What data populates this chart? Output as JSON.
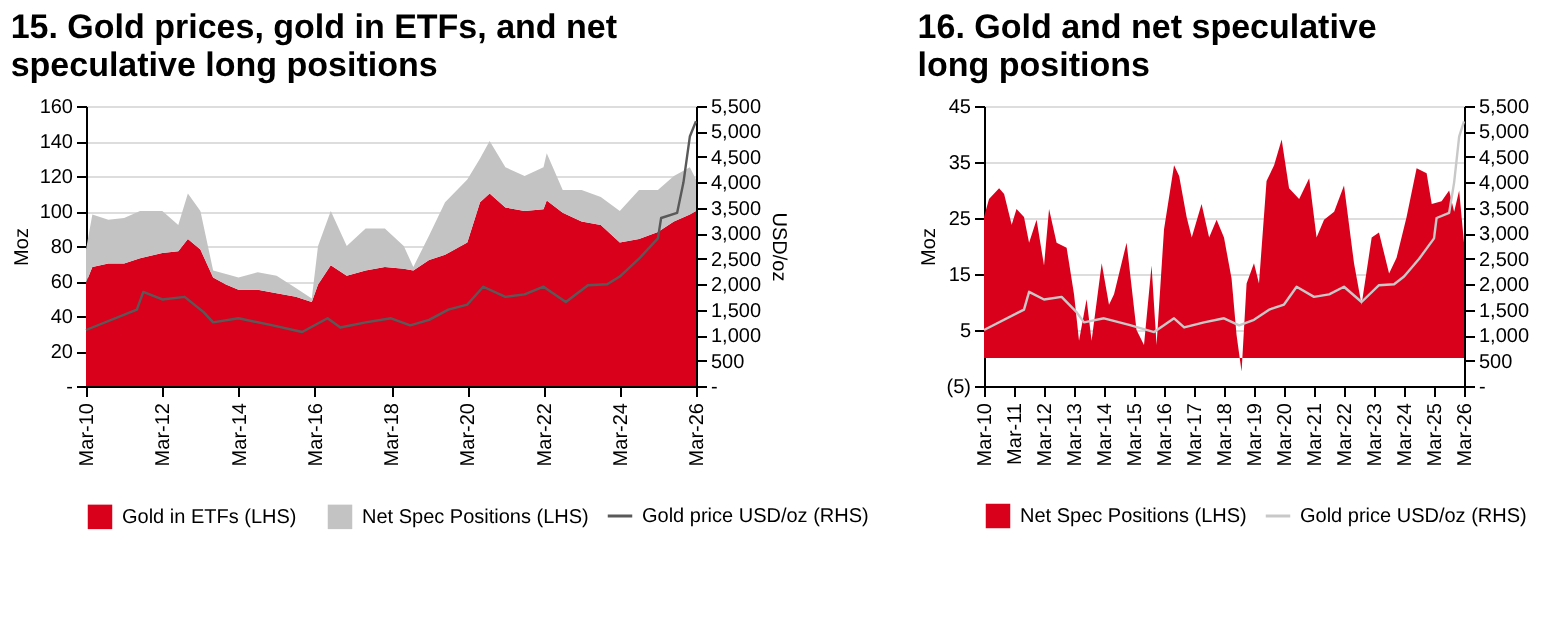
{
  "chart_data": [
    {
      "type": "area",
      "title": "15. Gold prices, gold in ETFs, and net speculative long positions",
      "ylabel": "Moz",
      "y2label": "USD/oz",
      "stacked": true,
      "legend": "bottom",
      "grid": "y",
      "x": [
        "2010-03",
        "2010-05",
        "2010-10",
        "2011-03",
        "2011-08",
        "2012-03",
        "2012-08",
        "2012-11",
        "2013-03",
        "2013-07",
        "2013-11",
        "2014-03",
        "2014-09",
        "2015-03",
        "2015-09",
        "2016-02",
        "2016-04",
        "2016-08",
        "2017-01",
        "2017-07",
        "2018-01",
        "2018-07",
        "2018-10",
        "2019-03",
        "2019-08",
        "2020-03",
        "2020-07",
        "2020-10",
        "2021-03",
        "2021-09",
        "2022-03",
        "2022-04",
        "2022-09",
        "2023-03",
        "2023-09",
        "2024-03",
        "2024-09",
        "2025-03",
        "2025-08",
        "2026-01",
        "2026-03"
      ],
      "series": [
        {
          "name": "Gold in ETFs (LHS)",
          "type": "area",
          "color": "#d9001b",
          "values": [
            59,
            68,
            70,
            70,
            73,
            76,
            77,
            84,
            78,
            62,
            58,
            55,
            55,
            53,
            51,
            48,
            58,
            69,
            63,
            66,
            68,
            67,
            66,
            72,
            75,
            82,
            105,
            110,
            102,
            100,
            101,
            106,
            99,
            94,
            92,
            82,
            84,
            88,
            94,
            98,
            100
          ]
        },
        {
          "name": "Net Spec Positions (LHS)",
          "type": "area",
          "color": "#c3c3c3",
          "values": [
            19,
            30,
            25,
            26,
            27,
            24,
            15,
            26,
            22,
            4,
            6,
            7,
            10,
            10,
            5,
            2,
            22,
            31,
            17,
            24,
            22,
            13,
            2,
            14,
            30,
            36,
            25,
            30,
            23,
            20,
            24,
            27,
            13,
            18,
            16,
            18,
            28,
            24,
            26,
            27,
            18
          ]
        },
        {
          "name": "Gold price USD/oz (RHS)",
          "type": "line",
          "axis": "y2",
          "color": "#595959",
          "x": [
            "2010-03",
            "2011-07",
            "2011-09",
            "2012-03",
            "2012-10",
            "2013-04",
            "2013-07",
            "2014-03",
            "2015-01",
            "2015-11",
            "2016-07",
            "2016-11",
            "2017-07",
            "2018-03",
            "2018-09",
            "2019-03",
            "2019-09",
            "2020-03",
            "2020-08",
            "2021-03",
            "2021-09",
            "2022-03",
            "2022-10",
            "2023-05",
            "2023-11",
            "2024-03",
            "2024-09",
            "2025-03",
            "2025-04",
            "2025-09",
            "2025-11",
            "2026-01",
            "2026-03"
          ],
          "values": [
            1100,
            1500,
            1850,
            1700,
            1750,
            1450,
            1250,
            1330,
            1200,
            1060,
            1330,
            1150,
            1250,
            1330,
            1190,
            1300,
            1500,
            1600,
            1950,
            1750,
            1800,
            1950,
            1650,
            1980,
            2000,
            2150,
            2500,
            2900,
            3300,
            3400,
            4000,
            4900,
            5200
          ]
        }
      ],
      "xlim": [
        "2010-03",
        "2026-03"
      ],
      "xticks": [
        {
          "value": "2010-03",
          "label": "Mar-10"
        },
        {
          "value": "2012-03",
          "label": "Mar-12"
        },
        {
          "value": "2014-03",
          "label": "Mar-14"
        },
        {
          "value": "2016-03",
          "label": "Mar-16"
        },
        {
          "value": "2018-03",
          "label": "Mar-18"
        },
        {
          "value": "2020-03",
          "label": "Mar-20"
        },
        {
          "value": "2022-03",
          "label": "Mar-22"
        },
        {
          "value": "2024-03",
          "label": "Mar-24"
        },
        {
          "value": "2026-03",
          "label": "Mar-26"
        }
      ],
      "ylim": [
        0,
        160
      ],
      "yticks": [
        {
          "value": 0,
          "label": "-"
        },
        20,
        40,
        60,
        80,
        100,
        120,
        140,
        160
      ],
      "y2lim": [
        0,
        5500
      ],
      "y2ticks": [
        {
          "value": 0,
          "label": "-"
        },
        500,
        {
          "value": 1000,
          "label": "1,000"
        },
        {
          "value": 1500,
          "label": "1,500"
        },
        {
          "value": 2000,
          "label": "2,000"
        },
        {
          "value": 2500,
          "label": "2,500"
        },
        {
          "value": 3000,
          "label": "3,000"
        },
        {
          "value": 3500,
          "label": "3,500"
        },
        {
          "value": 4000,
          "label": "4,000"
        },
        {
          "value": 4500,
          "label": "4,500"
        },
        {
          "value": 5000,
          "label": "5,000"
        },
        {
          "value": 5500,
          "label": "5,500"
        }
      ]
    },
    {
      "type": "area",
      "title": "16. Gold and net speculative long positions",
      "ylabel": "Moz",
      "legend": "bottom",
      "grid": "y",
      "x": [
        "2010-03",
        "2010-05",
        "2010-09",
        "2010-11",
        "2011-02",
        "2011-04",
        "2011-07",
        "2011-09",
        "2011-12",
        "2012-03",
        "2012-05",
        "2012-08",
        "2012-12",
        "2013-03",
        "2013-05",
        "2013-08",
        "2013-10",
        "2014-02",
        "2014-05",
        "2014-07",
        "2014-12",
        "2015-04",
        "2015-07",
        "2015-10",
        "2015-12",
        "2016-03",
        "2016-07",
        "2016-09",
        "2016-12",
        "2017-02",
        "2017-06",
        "2017-09",
        "2017-12",
        "2018-03",
        "2018-06",
        "2018-08",
        "2018-10",
        "2018-12",
        "2019-03",
        "2019-05",
        "2019-08",
        "2019-11",
        "2020-02",
        "2020-05",
        "2020-09",
        "2021-01",
        "2021-04",
        "2021-07",
        "2021-11",
        "2022-03",
        "2022-07",
        "2022-10",
        "2023-02",
        "2023-05",
        "2023-09",
        "2023-12",
        "2024-04",
        "2024-08",
        "2024-12",
        "2025-02",
        "2025-06",
        "2025-09",
        "2025-11",
        "2026-01",
        "2026-03"
      ],
      "series": [
        {
          "name": "Net Spec Positions (LHS)",
          "type": "area",
          "color": "#d9001b",
          "values": [
            25.2,
            28.4,
            30.3,
            29.3,
            23.8,
            26.6,
            25.2,
            20.6,
            24.7,
            16.5,
            26.6,
            20.6,
            19.7,
            11.4,
            3.1,
            10.5,
            3.1,
            16.9,
            9.5,
            11.4,
            20.6,
            5,
            2.3,
            16.5,
            2.3,
            23,
            34.4,
            32.5,
            25.2,
            21.5,
            27.5,
            21.5,
            24.7,
            21.5,
            14.2,
            4.1,
            -2.4,
            13.3,
            16.9,
            13.3,
            31.6,
            34.4,
            39,
            30.3,
            28.4,
            32.1,
            21.5,
            24.7,
            26.1,
            30.8,
            16.9,
            9.5,
            21.5,
            22.4,
            15.1,
            17.9,
            25.2,
            33.9,
            33,
            27.5,
            28,
            29.9,
            26.1,
            29.9,
            20.6
          ]
        },
        {
          "name": "Gold price USD/oz (RHS)",
          "type": "line",
          "axis": "y2",
          "color": "#c8c8c8",
          "x": [
            "2010-03",
            "2011-07",
            "2011-09",
            "2012-03",
            "2012-10",
            "2013-04",
            "2013-07",
            "2014-03",
            "2015-01",
            "2015-11",
            "2016-07",
            "2016-11",
            "2017-07",
            "2018-03",
            "2018-09",
            "2019-03",
            "2019-09",
            "2020-03",
            "2020-08",
            "2021-03",
            "2021-09",
            "2022-03",
            "2022-10",
            "2023-05",
            "2023-11",
            "2024-03",
            "2024-09",
            "2025-03",
            "2025-04",
            "2025-09",
            "2025-11",
            "2026-01",
            "2026-03"
          ],
          "values": [
            1100,
            1500,
            1850,
            1700,
            1750,
            1450,
            1250,
            1330,
            1200,
            1060,
            1330,
            1150,
            1250,
            1330,
            1190,
            1300,
            1500,
            1600,
            1950,
            1750,
            1800,
            1950,
            1650,
            1980,
            2000,
            2150,
            2500,
            2900,
            3300,
            3400,
            4000,
            4900,
            5200
          ]
        }
      ],
      "xlim": [
        "2010-03",
        "2026-03"
      ],
      "xticks": [
        {
          "value": "2010-03",
          "label": "Mar-10"
        },
        {
          "value": "2011-03",
          "label": "Mar-11"
        },
        {
          "value": "2012-03",
          "label": "Mar-12"
        },
        {
          "value": "2013-03",
          "label": "Mar-13"
        },
        {
          "value": "2014-03",
          "label": "Mar-14"
        },
        {
          "value": "2015-03",
          "label": "Mar-15"
        },
        {
          "value": "2016-03",
          "label": "Mar-16"
        },
        {
          "value": "2017-03",
          "label": "Mar-17"
        },
        {
          "value": "2018-03",
          "label": "Mar-18"
        },
        {
          "value": "2019-03",
          "label": "Mar-19"
        },
        {
          "value": "2020-03",
          "label": "Mar-20"
        },
        {
          "value": "2021-03",
          "label": "Mar-21"
        },
        {
          "value": "2022-03",
          "label": "Mar-22"
        },
        {
          "value": "2023-03",
          "label": "Mar-23"
        },
        {
          "value": "2024-03",
          "label": "Mar-24"
        },
        {
          "value": "2025-03",
          "label": "Mar-25"
        },
        {
          "value": "2026-03",
          "label": "Mar-26"
        }
      ],
      "ylim": [
        -5,
        45
      ],
      "yticks": [
        {
          "value": -5,
          "label": "(5)"
        },
        5,
        15,
        25,
        35,
        45
      ],
      "y2lim": [
        0,
        5500
      ],
      "y2ticks": [
        {
          "value": 0,
          "label": "-"
        },
        500,
        {
          "value": 1000,
          "label": "1,000"
        },
        {
          "value": 1500,
          "label": "1,500"
        },
        {
          "value": 2000,
          "label": "2,000"
        },
        {
          "value": 2500,
          "label": "2,500"
        },
        {
          "value": 3000,
          "label": "3,000"
        },
        {
          "value": 3500,
          "label": "3,500"
        },
        {
          "value": 4000,
          "label": "4,000"
        },
        {
          "value": 4500,
          "label": "4,500"
        },
        {
          "value": 5000,
          "label": "5,000"
        },
        {
          "value": 5500,
          "label": "5,500"
        }
      ]
    }
  ]
}
